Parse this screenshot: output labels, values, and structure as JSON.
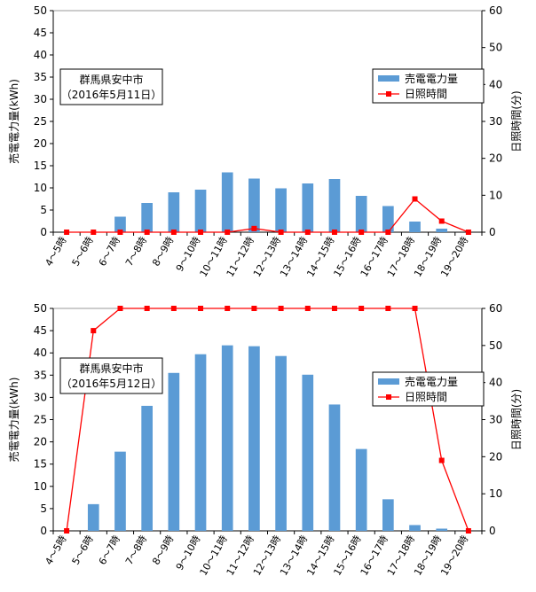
{
  "colors": {
    "bar": "#5B9BD5",
    "line": "#FF0000",
    "axis": "#000000",
    "grid": "#999999"
  },
  "chart_data": [
    {
      "type": "bar",
      "annotation": [
        "群馬県安中市",
        "（2016年5月11日）"
      ],
      "categories": [
        "4～5時",
        "5～6時",
        "6～7時",
        "7～8時",
        "8～9時",
        "9～10時",
        "10～11時",
        "11～12時",
        "12～13時",
        "13～14時",
        "14～15時",
        "15～16時",
        "16～17時",
        "17～18時",
        "18～19時",
        "19～20時"
      ],
      "series": [
        {
          "name": "売電電力量",
          "type": "bar",
          "axis": "left",
          "values": [
            0,
            0,
            3.5,
            6.6,
            9.0,
            9.6,
            13.5,
            12.1,
            9.9,
            11.0,
            12.0,
            8.2,
            5.9,
            2.4,
            0.8,
            0
          ]
        },
        {
          "name": "日照時間",
          "type": "line",
          "axis": "right",
          "values": [
            0,
            0,
            0,
            0,
            0,
            0,
            0,
            1,
            0,
            0,
            0,
            0,
            0,
            9,
            3,
            0
          ]
        }
      ],
      "ylabel": "売電電力量(kWh)",
      "ylabel_right": "日照時間(分)",
      "ylim": [
        0,
        50
      ],
      "ylim_right": [
        0,
        60
      ],
      "yticks": [
        "0",
        "5",
        "10",
        "15",
        "20",
        "25",
        "30",
        "35",
        "40",
        "45",
        "50"
      ],
      "yticks_right": [
        "0",
        "10",
        "20",
        "30",
        "40",
        "50",
        "60"
      ],
      "grid": true,
      "legend": "right"
    },
    {
      "type": "bar",
      "annotation": [
        "群馬県安中市",
        "（2016年5月12日）"
      ],
      "categories": [
        "4～5時",
        "5～6時",
        "6～7時",
        "7～8時",
        "8～9時",
        "9～10時",
        "10～11時",
        "11～12時",
        "12～13時",
        "13～14時",
        "14～15時",
        "15～16時",
        "16～17時",
        "17～18時",
        "18～19時",
        "19～20時"
      ],
      "series": [
        {
          "name": "売電電力量",
          "type": "bar",
          "axis": "left",
          "values": [
            0,
            6.0,
            17.8,
            28.1,
            35.5,
            39.7,
            41.7,
            41.5,
            39.3,
            35.1,
            28.4,
            18.4,
            7.1,
            1.3,
            0.5,
            0
          ]
        },
        {
          "name": "日照時間",
          "type": "line",
          "axis": "right",
          "values": [
            0,
            54,
            60,
            60,
            60,
            60,
            60,
            60,
            60,
            60,
            60,
            60,
            60,
            60,
            19,
            0
          ]
        }
      ],
      "ylabel": "売電電力量(kWh)",
      "ylabel_right": "日照時間(分)",
      "ylim": [
        0,
        50
      ],
      "ylim_right": [
        0,
        60
      ],
      "yticks": [
        "0",
        "5",
        "10",
        "15",
        "20",
        "25",
        "30",
        "35",
        "40",
        "45",
        "50"
      ],
      "yticks_right": [
        "0",
        "10",
        "20",
        "30",
        "40",
        "50",
        "60"
      ],
      "grid": true,
      "legend": "right"
    }
  ]
}
